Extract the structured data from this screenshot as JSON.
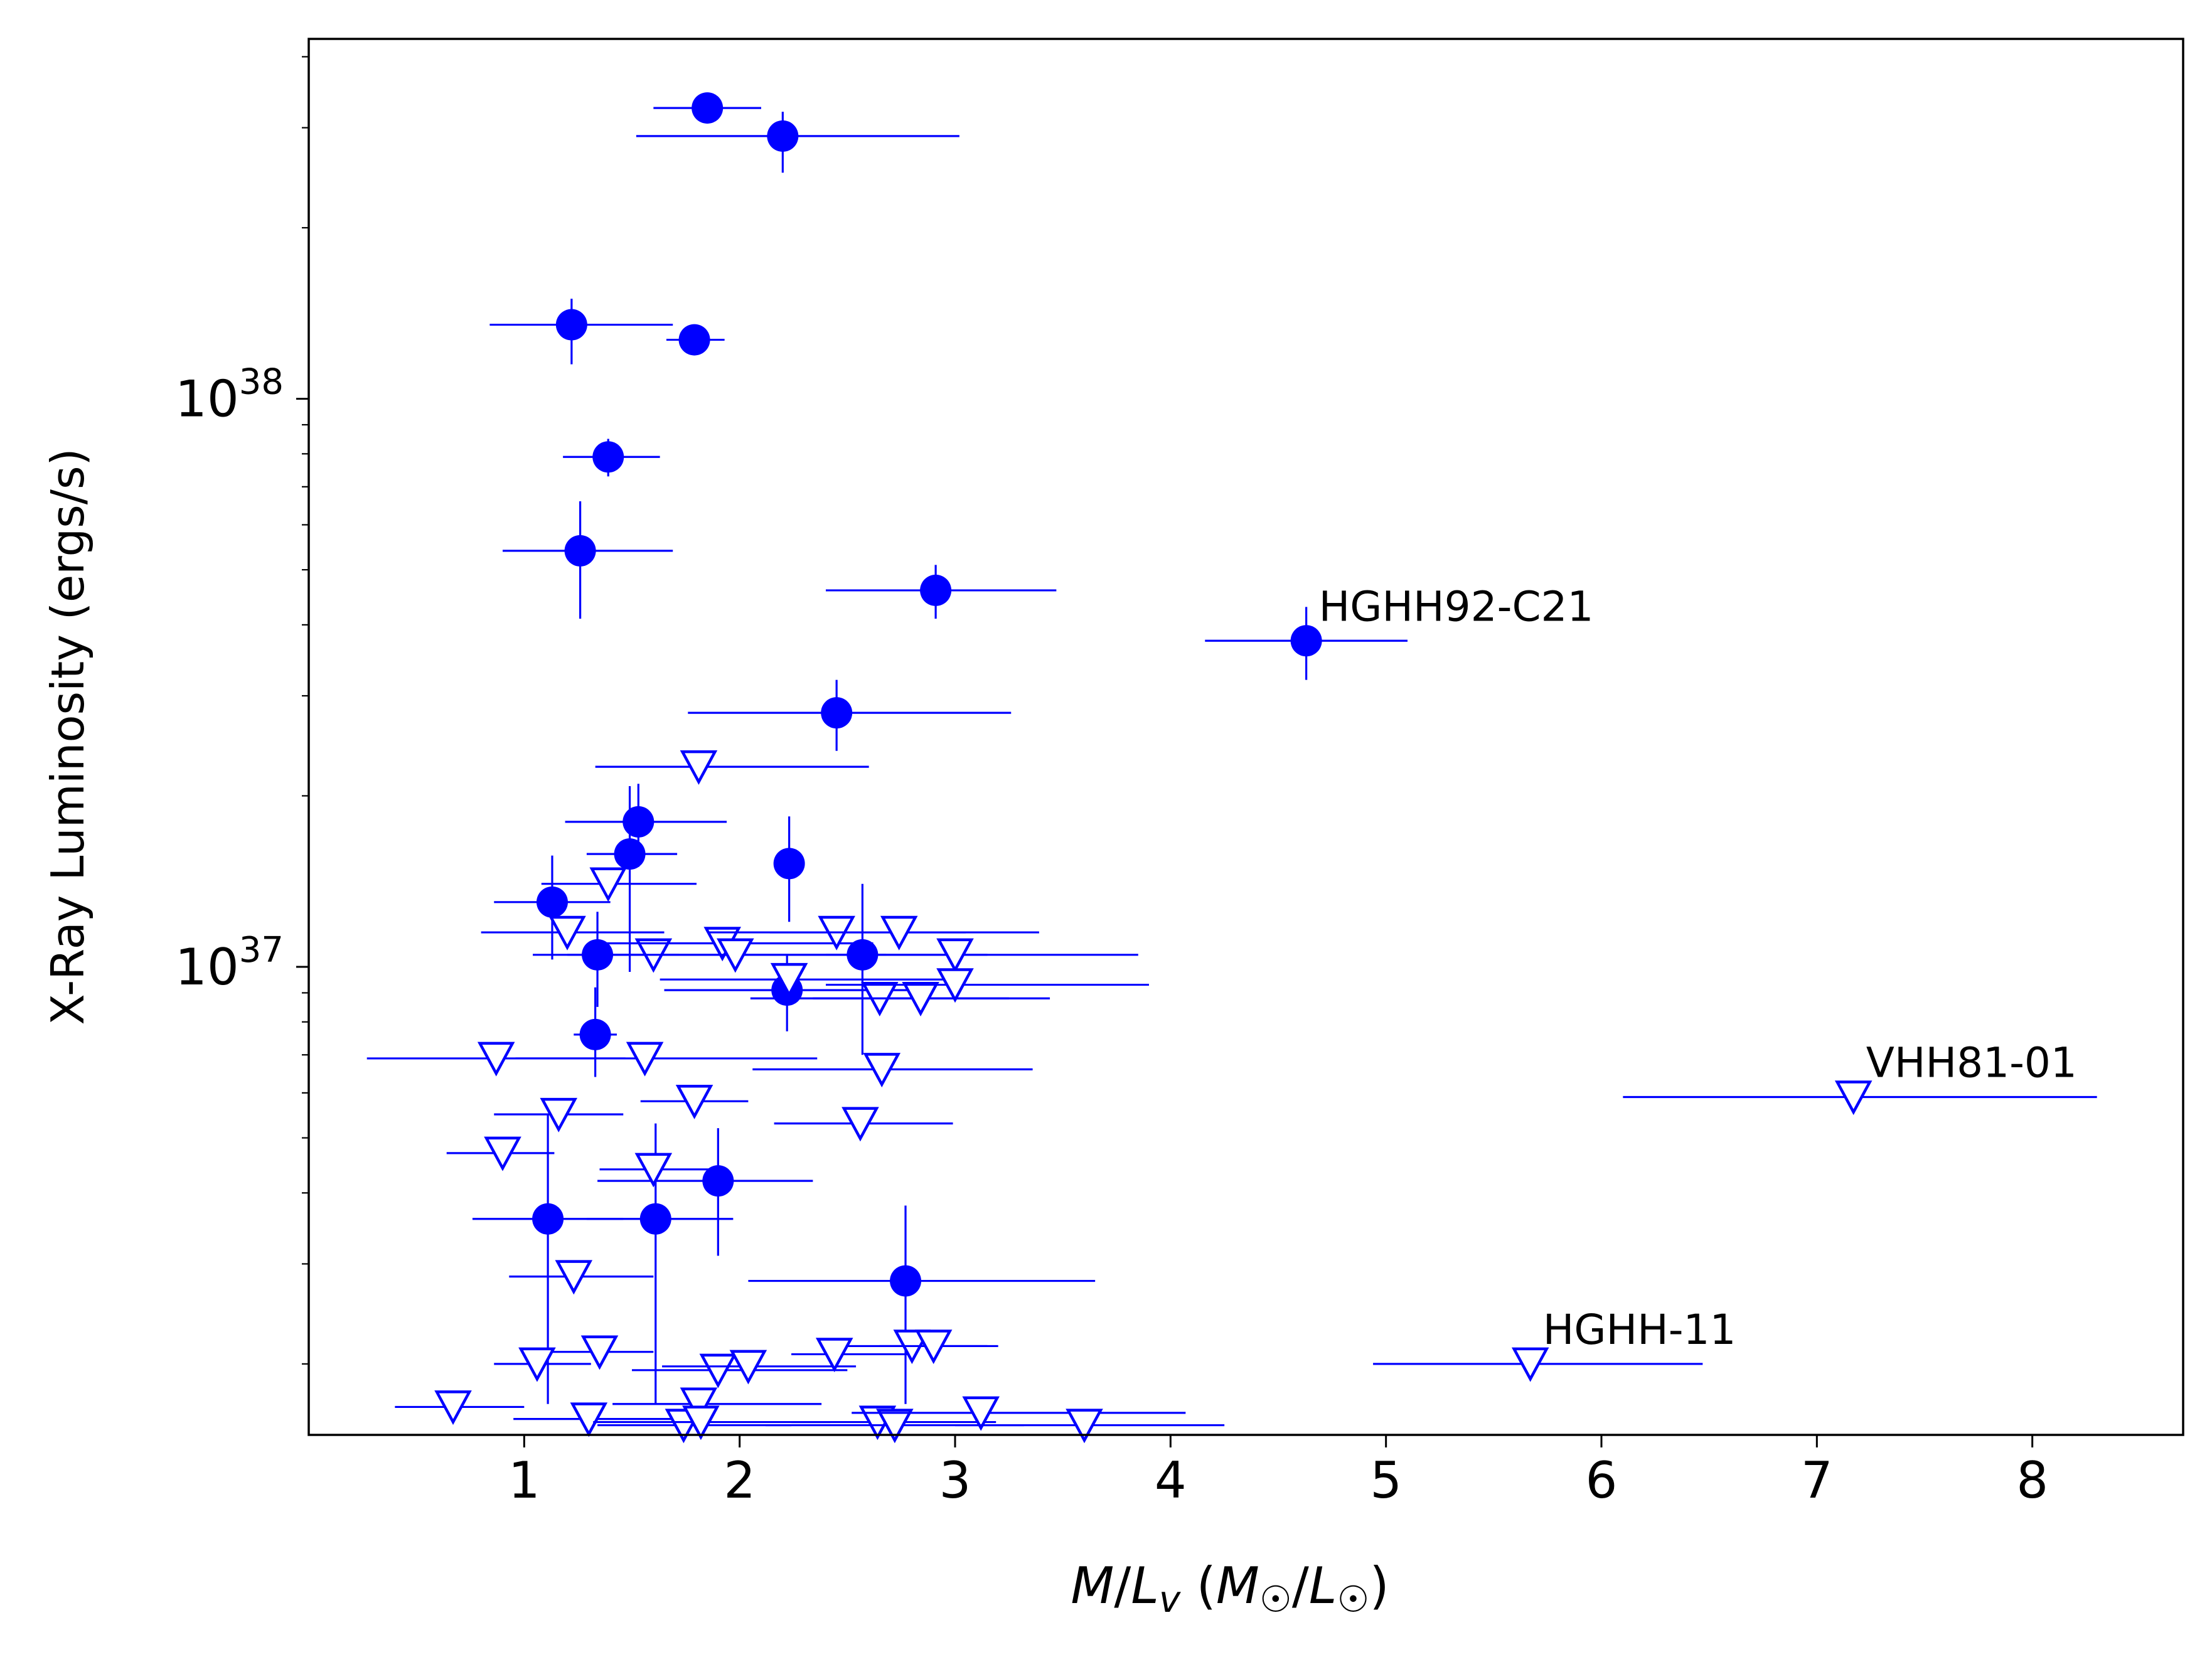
{
  "chart_data": {
    "type": "scatter",
    "title": "",
    "xlabel": "M/L_v (M☉/L☉)",
    "ylabel": "X-Ray Luminosity (ergs/s)",
    "xlim": [
      0.0,
      8.7
    ],
    "ylim": [
      1.5e+36,
      4.3e+38
    ],
    "yscale": "log",
    "grid": false,
    "color": "#0000ff",
    "xticks": [
      "1",
      "2",
      "3",
      "4",
      "5",
      "6",
      "7",
      "8"
    ],
    "series": [
      {
        "marker": "filled-circle",
        "points": [
          {
            "x": 1.85,
            "y": 3.25e+38,
            "xerr": [
              0.25,
              0.25
            ],
            "yerr": [
              1.5e+37,
              1.5e+37
            ]
          },
          {
            "x": 2.2,
            "y": 2.9e+38,
            "xerr": [
              0.68,
              0.82
            ],
            "yerr": [
              4e+37,
              3e+37
            ]
          },
          {
            "x": 1.22,
            "y": 1.35e+38,
            "xerr": [
              0.38,
              0.47
            ],
            "yerr": [
              2e+37,
              1.5e+37
            ]
          },
          {
            "x": 1.79,
            "y": 1.27e+38,
            "xerr": [
              0.13,
              0.14
            ],
            "yerr": [
              5e+36,
              5e+36
            ]
          },
          {
            "x": 1.39,
            "y": 7.9e+37,
            "xerr": [
              0.21,
              0.24
            ],
            "yerr": [
              6e+36,
              6e+36
            ]
          },
          {
            "x": 1.26,
            "y": 5.4e+37,
            "xerr": [
              0.36,
              0.43
            ],
            "yerr": [
              1.3e+37,
              1.2e+37
            ]
          },
          {
            "x": 2.91,
            "y": 4.6e+37,
            "xerr": [
              0.51,
              0.56
            ],
            "yerr": [
              5e+36,
              5e+36
            ]
          },
          {
            "x": 4.63,
            "y": 3.75e+37,
            "xerr": [
              0.47,
              0.47
            ],
            "yerr": [
              5.5e+36,
              5.5e+36
            ]
          },
          {
            "x": 2.45,
            "y": 2.8e+37,
            "xerr": [
              0.69,
              0.81
            ],
            "yerr": [
              4e+36,
              4e+36
            ]
          },
          {
            "x": 1.53,
            "y": 1.8e+37,
            "xerr": [
              0.34,
              0.41
            ],
            "yerr": [
              3e+36,
              3e+36
            ]
          },
          {
            "x": 1.49,
            "y": 1.58e+37,
            "xerr": [
              0.2,
              0.22
            ],
            "yerr": [
              6e+36,
              5e+36
            ]
          },
          {
            "x": 2.23,
            "y": 1.52e+37,
            "xerr": [
              0.06,
              0.06
            ],
            "yerr": [
              3.2e+36,
              3.2e+36
            ]
          },
          {
            "x": 1.13,
            "y": 1.3e+37,
            "xerr": [
              0.27,
              0.27
            ],
            "yerr": [
              2.7e+36,
              2.7e+36
            ]
          },
          {
            "x": 1.34,
            "y": 1.05e+37,
            "xerr": [
              0.3,
              0.38
            ],
            "yerr": [
              2e+36,
              2e+36
            ]
          },
          {
            "x": 2.57,
            "y": 1.05e+37,
            "xerr": [
              0.59,
              0.58
            ],
            "yerr": [
              3.5e+36,
              3.5e+36
            ]
          },
          {
            "x": 2.22,
            "y": 9.1e+36,
            "xerr": [
              0.57,
              0.56
            ],
            "yerr": [
              1.4e+36,
              1.4e+36
            ]
          },
          {
            "x": 1.33,
            "y": 7.6e+36,
            "xerr": [
              0.1,
              0.1
            ],
            "yerr": [
              1.2e+36,
              1.6e+36
            ]
          },
          {
            "x": 1.9,
            "y": 4.2e+36,
            "xerr": [
              0.56,
              0.44
            ],
            "yerr": [
              1.1e+36,
              1e+36
            ]
          },
          {
            "x": 1.11,
            "y": 3.6e+36,
            "xerr": [
              0.35,
              0.35
            ],
            "yerr": [
              1.9e+36,
              1.9e+36
            ]
          },
          {
            "x": 1.61,
            "y": 3.6e+36,
            "xerr": [
              0.32,
              0.36
            ],
            "yerr": [
              1.9e+36,
              1.7e+36
            ]
          },
          {
            "x": 2.77,
            "y": 2.8e+36,
            "xerr": [
              0.73,
              0.88
            ],
            "yerr": [
              1.1e+36,
              1e+36
            ]
          }
        ]
      },
      {
        "marker": "open-down-triangle",
        "points": [
          {
            "x": 1.81,
            "y": 2.25e+37,
            "xerr": [
              0.48,
              0.79
            ]
          },
          {
            "x": 1.39,
            "y": 1.4e+37,
            "xerr": [
              0.31,
              0.41
            ]
          },
          {
            "x": 1.2,
            "y": 1.15e+37,
            "xerr": [
              0.4,
              0.45
            ]
          },
          {
            "x": 1.6,
            "y": 1.05e+37,
            "xerr": [
              0.4,
              0.44
            ]
          },
          {
            "x": 1.92,
            "y": 1.1e+37,
            "xerr": [
              0.6,
              0.7
            ]
          },
          {
            "x": 1.98,
            "y": 1.05e+37,
            "xerr": [
              0.6,
              0.7
            ]
          },
          {
            "x": 2.45,
            "y": 1.15e+37,
            "xerr": [
              0.6,
              0.6
            ]
          },
          {
            "x": 2.74,
            "y": 1.15e+37,
            "xerr": [
              0.6,
              0.65
            ]
          },
          {
            "x": 3.0,
            "y": 1.05e+37,
            "xerr": [
              0.6,
              0.85
            ]
          },
          {
            "x": 2.23,
            "y": 9.5e+36,
            "xerr": [
              0.6,
              0.8
            ]
          },
          {
            "x": 2.65,
            "y": 8.8e+36,
            "xerr": [
              0.6,
              0.6
            ]
          },
          {
            "x": 2.84,
            "y": 8.8e+36,
            "xerr": [
              0.5,
              0.6
            ]
          },
          {
            "x": 3.0,
            "y": 9.3e+36,
            "xerr": [
              0.6,
              0.9
            ]
          },
          {
            "x": 0.87,
            "y": 6.9e+36,
            "xerr": [
              0.6,
              0.6
            ]
          },
          {
            "x": 1.56,
            "y": 6.9e+36,
            "xerr": [
              0.6,
              0.8
            ]
          },
          {
            "x": 2.66,
            "y": 6.6e+36,
            "xerr": [
              0.6,
              0.7
            ]
          },
          {
            "x": 1.79,
            "y": 5.8e+36,
            "xerr": [
              0.25,
              0.25
            ]
          },
          {
            "x": 1.16,
            "y": 5.5e+36,
            "xerr": [
              0.3,
              0.3
            ]
          },
          {
            "x": 2.56,
            "y": 5.3e+36,
            "xerr": [
              0.4,
              0.43
            ]
          },
          {
            "x": 0.9,
            "y": 4.7e+36,
            "xerr": [
              0.26,
              0.24
            ]
          },
          {
            "x": 1.6,
            "y": 4.4e+36,
            "xerr": [
              0.25,
              0.3
            ]
          },
          {
            "x": 1.23,
            "y": 2.85e+36,
            "xerr": [
              0.3,
              0.37
            ]
          },
          {
            "x": 1.35,
            "y": 2.1e+36,
            "xerr": [
              0.25,
              0.25
            ]
          },
          {
            "x": 1.06,
            "y": 2e+36,
            "xerr": [
              0.2,
              0.25
            ]
          },
          {
            "x": 1.9,
            "y": 1.95e+36,
            "xerr": [
              0.4,
              0.6
            ]
          },
          {
            "x": 2.04,
            "y": 1.98e+36,
            "xerr": [
              0.4,
              0.5
            ]
          },
          {
            "x": 2.44,
            "y": 2.08e+36,
            "xerr": [
              0.2,
              0.35
            ]
          },
          {
            "x": 2.8,
            "y": 2.15e+36,
            "xerr": [
              0.3,
              0.35
            ]
          },
          {
            "x": 2.9,
            "y": 2.15e+36,
            "xerr": [
              0.25,
              0.3
            ]
          },
          {
            "x": 0.67,
            "y": 1.68e+36,
            "xerr": [
              0.27,
              0.33
            ]
          },
          {
            "x": 1.81,
            "y": 1.7e+36,
            "xerr": [
              0.4,
              0.57
            ]
          },
          {
            "x": 1.3,
            "y": 1.6e+36,
            "xerr": [
              0.35,
              0.4
            ]
          },
          {
            "x": 1.74,
            "y": 1.56e+36,
            "xerr": [
              0.4,
              0.5
            ]
          },
          {
            "x": 1.82,
            "y": 1.58e+36,
            "xerr": [
              0.5,
              0.6
            ]
          },
          {
            "x": 2.64,
            "y": 1.58e+36,
            "xerr": [
              0.4,
              0.55
            ]
          },
          {
            "x": 2.72,
            "y": 1.56e+36,
            "xerr": [
              0.6,
              0.6
            ]
          },
          {
            "x": 3.12,
            "y": 1.64e+36,
            "xerr": [
              0.6,
              0.95
            ]
          },
          {
            "x": 3.6,
            "y": 1.56e+36,
            "xerr": [
              0.6,
              0.65
            ]
          },
          {
            "x": 7.17,
            "y": 5.9e+36,
            "xerr": [
              1.07,
              1.13
            ]
          },
          {
            "x": 5.67,
            "y": 2e+36,
            "xerr": [
              0.73,
              0.8
            ]
          }
        ]
      }
    ],
    "annotations": [
      {
        "text": "HGHH92-C21",
        "x": 4.63,
        "y": 3.75e+37
      },
      {
        "text": "VHH81-01",
        "x": 7.17,
        "y": 5.9e+36
      },
      {
        "text": "HGHH-11",
        "x": 5.67,
        "y": 2e+36
      }
    ]
  }
}
